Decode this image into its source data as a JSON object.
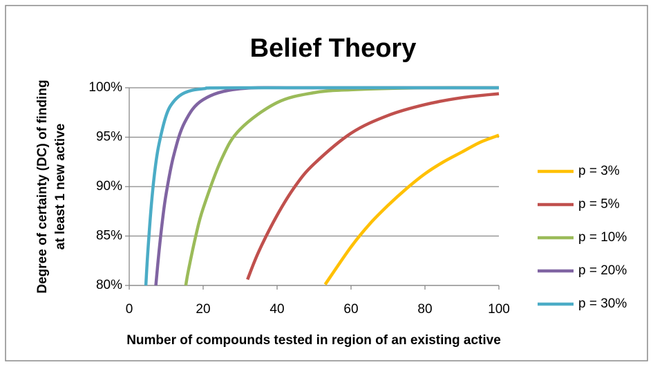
{
  "chart_data": {
    "type": "line",
    "title": "Belief Theory",
    "xlabel": "Number of compounds tested in region of an existing active",
    "ylabel": [
      "Degree of certainty (DC) of finding",
      "at least 1 new active"
    ],
    "xlim": [
      0,
      100
    ],
    "xticks": [
      0,
      20,
      40,
      60,
      80,
      100
    ],
    "ylim": [
      80,
      100
    ],
    "yticks": [
      {
        "value": 80,
        "label": "80%"
      },
      {
        "value": 85,
        "label": "85%"
      },
      {
        "value": 90,
        "label": "90%"
      },
      {
        "value": 95,
        "label": "95%"
      },
      {
        "value": 100,
        "label": "100%"
      }
    ],
    "grid": true,
    "legend": "right",
    "series": [
      {
        "name": "p = 3%",
        "color": "#FFC000",
        "x": [
          53,
          60,
          65,
          70,
          75,
          80,
          85,
          90,
          95,
          100
        ],
        "values": [
          80.1,
          83.9,
          86.2,
          88.1,
          89.8,
          91.3,
          92.5,
          93.5,
          94.5,
          95.2
        ]
      },
      {
        "name": "p = 5%",
        "color": "#C0504D",
        "x": [
          32,
          35,
          40,
          45,
          50,
          60,
          70,
          80,
          90,
          100
        ],
        "values": [
          80.6,
          83.4,
          87.1,
          90.1,
          92.3,
          95.4,
          97.2,
          98.3,
          99.0,
          99.4
        ]
      },
      {
        "name": "p = 10%",
        "color": "#9BBB59",
        "x": [
          15.3,
          16,
          18,
          20,
          25,
          30,
          40,
          50,
          60,
          80,
          100
        ],
        "values": [
          80.0,
          81.5,
          85.0,
          87.8,
          92.8,
          95.8,
          98.5,
          99.5,
          99.8,
          100,
          100
        ]
      },
      {
        "name": "p = 20%",
        "color": "#8064A2",
        "x": [
          7.2,
          8,
          9,
          10,
          12,
          15,
          20,
          30,
          50,
          100
        ],
        "values": [
          80.0,
          83.2,
          86.6,
          89.3,
          93.1,
          96.5,
          98.8,
          99.9,
          100,
          100
        ]
      },
      {
        "name": "p = 30%",
        "color": "#4BACC6",
        "x": [
          4.5,
          5,
          6,
          7,
          8,
          10,
          12,
          15,
          20,
          30,
          100
        ],
        "values": [
          80.0,
          83.2,
          88.2,
          91.8,
          94.2,
          97.2,
          98.6,
          99.5,
          99.9,
          100,
          100
        ]
      }
    ]
  }
}
